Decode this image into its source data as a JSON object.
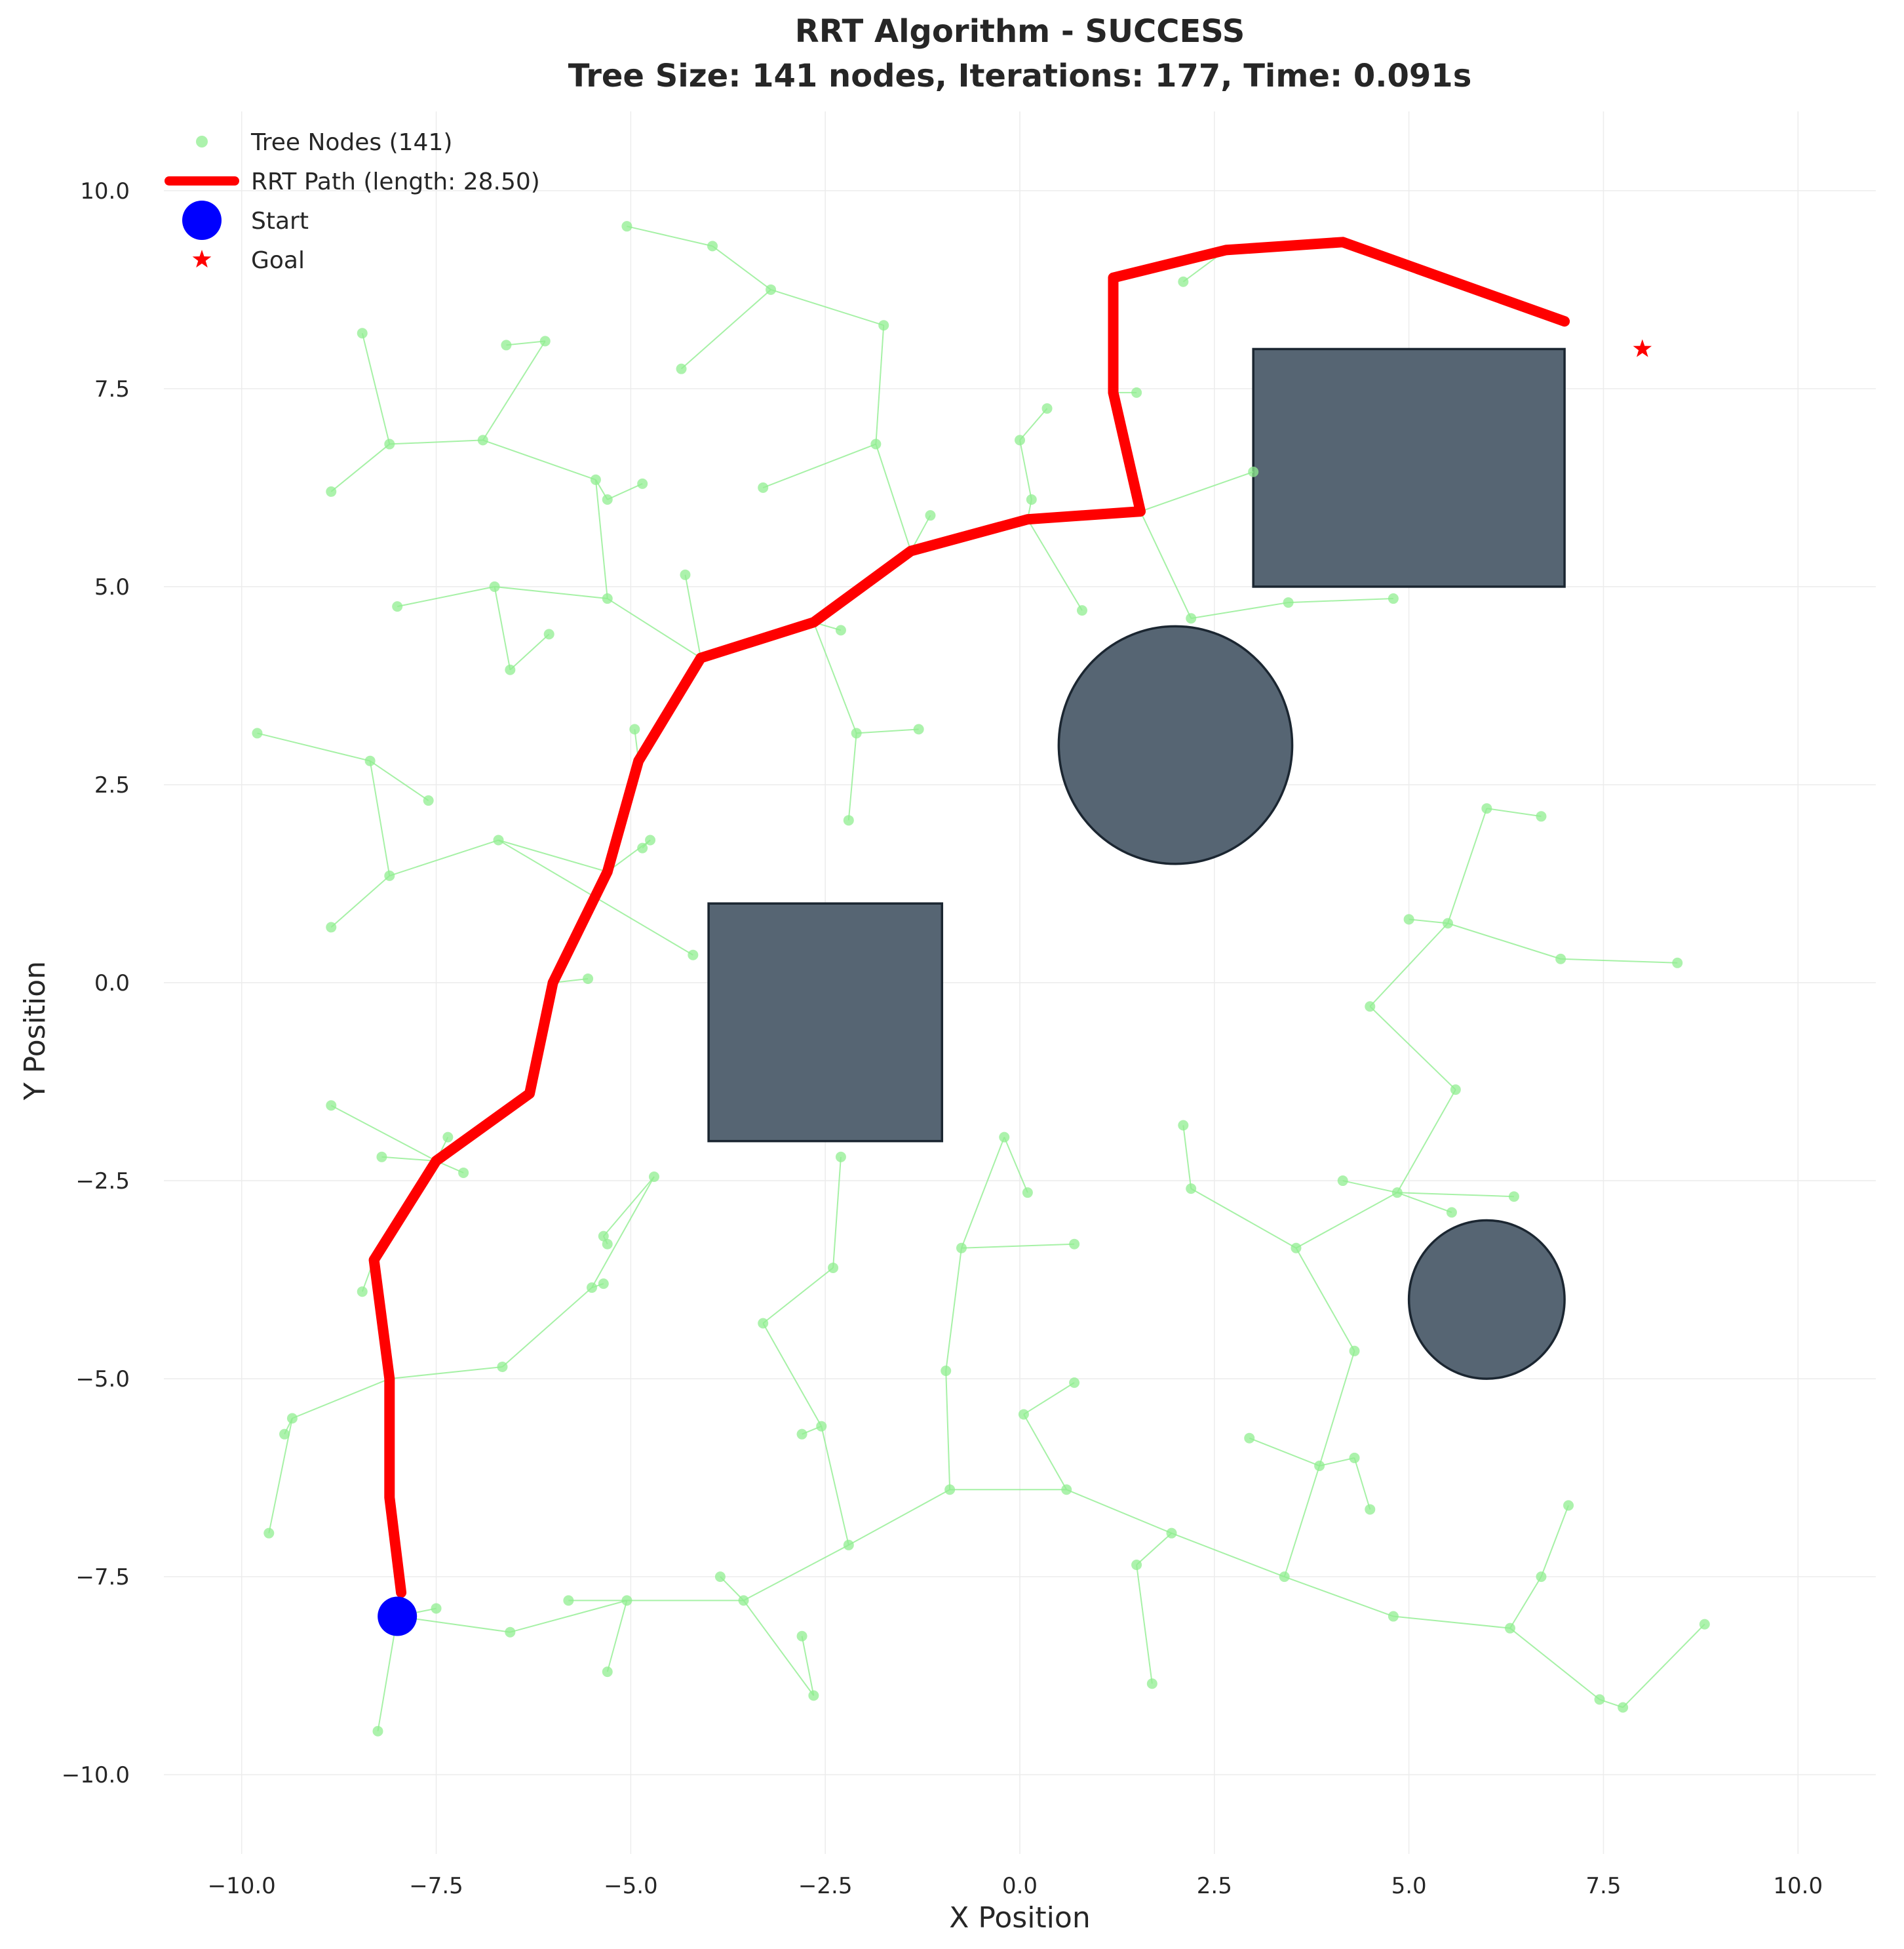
{
  "chart_data": {
    "type": "scatter",
    "title": "RRT Algorithm - SUCCESS",
    "subtitle": "Tree Size: 141 nodes, Iterations: 177, Time: 0.091s",
    "xlabel": "X Position",
    "ylabel": "Y Position",
    "xlim": [
      -11,
      11
    ],
    "ylim": [
      -11,
      11
    ],
    "xticks": [
      -10,
      -7.5,
      -5,
      -2.5,
      0,
      2.5,
      5,
      7.5,
      10
    ],
    "xtick_labels": [
      "−10.0",
      "−7.5",
      "−5.0",
      "−2.5",
      "0.0",
      "2.5",
      "5.0",
      "7.5",
      "10.0"
    ],
    "yticks": [
      10,
      7.5,
      5,
      2.5,
      0,
      -2.5,
      -5,
      -7.5,
      -10
    ],
    "ytick_labels": [
      "10.0",
      "7.5",
      "5.0",
      "2.5",
      "0.0",
      "−2.5",
      "−5.0",
      "−7.5",
      "−10.0"
    ],
    "grid": true,
    "legend_position": "top-left",
    "legend": [
      {
        "label": "Tree Nodes (141)",
        "kind": "node",
        "color": "#90ee90"
      },
      {
        "label": "RRT Path (length: 28.50)",
        "kind": "line",
        "color": "#ff0000"
      },
      {
        "label": "Start",
        "kind": "circle",
        "color": "#0000ff"
      },
      {
        "label": "Goal",
        "kind": "star",
        "color": "#ff0000"
      }
    ],
    "colors": {
      "tree": "#90ee90",
      "path": "#ff0000",
      "start": "#0000ff",
      "goal": "#ff0000",
      "obstacle_fill": "#566573",
      "obstacle_edge": "#1b2631"
    },
    "start": [
      -8,
      -8
    ],
    "goal": [
      8,
      8
    ],
    "obstacles": [
      {
        "shape": "rect",
        "x0": -4,
        "y0": -2,
        "x1": -1,
        "y1": 1
      },
      {
        "shape": "rect",
        "x0": 3,
        "y0": 5,
        "x1": 7,
        "y1": 8
      },
      {
        "shape": "circle",
        "cx": 2,
        "cy": 3,
        "r": 1.5
      },
      {
        "shape": "circle",
        "cx": 6,
        "cy": -4,
        "r": 1
      }
    ],
    "path": [
      [
        -7.95,
        -7.7
      ],
      [
        -8.1,
        -6.5
      ],
      [
        -8.1,
        -5.0
      ],
      [
        -8.3,
        -3.5
      ],
      [
        -7.5,
        -2.25
      ],
      [
        -6.3,
        -1.4
      ],
      [
        -6.0,
        0.0
      ],
      [
        -5.3,
        1.4
      ],
      [
        -4.9,
        2.8
      ],
      [
        -4.1,
        4.1
      ],
      [
        -2.65,
        4.55
      ],
      [
        -1.4,
        5.45
      ],
      [
        0.1,
        5.85
      ],
      [
        1.55,
        5.95
      ],
      [
        1.2,
        7.45
      ],
      [
        1.2,
        8.9
      ],
      [
        2.65,
        9.25
      ],
      [
        4.15,
        9.35
      ],
      [
        7.0,
        8.35
      ]
    ],
    "tree_edges": [
      [
        [
          -8.0,
          -8.0
        ],
        [
          -7.5,
          -7.9
        ]
      ],
      [
        [
          -8.0,
          -8.0
        ],
        [
          -8.25,
          -9.45
        ]
      ],
      [
        [
          -8.0,
          -8.0
        ],
        [
          -6.55,
          -8.2
        ]
      ],
      [
        [
          -6.55,
          -8.2
        ],
        [
          -5.05,
          -7.8
        ]
      ],
      [
        [
          -5.05,
          -7.8
        ],
        [
          -5.3,
          -8.7
        ]
      ],
      [
        [
          -5.05,
          -7.8
        ],
        [
          -5.8,
          -7.8
        ]
      ],
      [
        [
          -5.05,
          -7.8
        ],
        [
          -3.55,
          -7.8
        ]
      ],
      [
        [
          -3.55,
          -7.8
        ],
        [
          -3.85,
          -7.5
        ]
      ],
      [
        [
          -3.55,
          -7.8
        ],
        [
          -2.65,
          -9.0
        ]
      ],
      [
        [
          -2.65,
          -9.0
        ],
        [
          -2.8,
          -8.25
        ]
      ],
      [
        [
          -3.55,
          -7.8
        ],
        [
          -2.2,
          -7.1
        ]
      ],
      [
        [
          -2.2,
          -7.1
        ],
        [
          -2.55,
          -5.6
        ]
      ],
      [
        [
          -2.55,
          -5.6
        ],
        [
          -2.8,
          -5.7
        ]
      ],
      [
        [
          -2.55,
          -5.6
        ],
        [
          -3.3,
          -4.3
        ]
      ],
      [
        [
          -3.3,
          -4.3
        ],
        [
          -2.4,
          -3.6
        ]
      ],
      [
        [
          -2.4,
          -3.6
        ],
        [
          -2.3,
          -2.2
        ]
      ],
      [
        [
          -2.2,
          -7.1
        ],
        [
          -0.9,
          -6.4
        ]
      ],
      [
        [
          -0.9,
          -6.4
        ],
        [
          -0.95,
          -4.9
        ]
      ],
      [
        [
          -0.95,
          -4.9
        ],
        [
          -0.75,
          -3.35
        ]
      ],
      [
        [
          -0.75,
          -3.35
        ],
        [
          0.7,
          -3.3
        ]
      ],
      [
        [
          -0.75,
          -3.35
        ],
        [
          -0.2,
          -1.95
        ]
      ],
      [
        [
          -0.2,
          -1.95
        ],
        [
          0.1,
          -2.65
        ]
      ],
      [
        [
          -0.9,
          -6.4
        ],
        [
          0.6,
          -6.4
        ]
      ],
      [
        [
          0.6,
          -6.4
        ],
        [
          0.05,
          -5.45
        ]
      ],
      [
        [
          0.05,
          -5.45
        ],
        [
          0.7,
          -5.05
        ]
      ],
      [
        [
          0.6,
          -6.4
        ],
        [
          1.95,
          -6.95
        ]
      ],
      [
        [
          1.95,
          -6.95
        ],
        [
          1.5,
          -7.35
        ]
      ],
      [
        [
          1.5,
          -7.35
        ],
        [
          1.7,
          -8.85
        ]
      ],
      [
        [
          1.95,
          -6.95
        ],
        [
          3.4,
          -7.5
        ]
      ],
      [
        [
          3.4,
          -7.5
        ],
        [
          3.85,
          -6.1
        ]
      ],
      [
        [
          3.85,
          -6.1
        ],
        [
          2.95,
          -5.75
        ]
      ],
      [
        [
          3.85,
          -6.1
        ],
        [
          4.3,
          -6.0
        ]
      ],
      [
        [
          4.3,
          -6.0
        ],
        [
          4.5,
          -6.65
        ]
      ],
      [
        [
          3.85,
          -6.1
        ],
        [
          4.3,
          -4.65
        ]
      ],
      [
        [
          4.3,
          -4.65
        ],
        [
          3.55,
          -3.35
        ]
      ],
      [
        [
          3.55,
          -3.35
        ],
        [
          2.2,
          -2.6
        ]
      ],
      [
        [
          2.2,
          -2.6
        ],
        [
          2.1,
          -1.8
        ]
      ],
      [
        [
          3.55,
          -3.35
        ],
        [
          4.85,
          -2.65
        ]
      ],
      [
        [
          4.85,
          -2.65
        ],
        [
          4.15,
          -2.5
        ]
      ],
      [
        [
          4.85,
          -2.65
        ],
        [
          5.55,
          -2.9
        ]
      ],
      [
        [
          4.85,
          -2.65
        ],
        [
          6.35,
          -2.7
        ]
      ],
      [
        [
          4.85,
          -2.65
        ],
        [
          5.6,
          -1.35
        ]
      ],
      [
        [
          5.6,
          -1.35
        ],
        [
          4.5,
          -0.3
        ]
      ],
      [
        [
          4.5,
          -0.3
        ],
        [
          5.5,
          0.75
        ]
      ],
      [
        [
          5.5,
          0.75
        ],
        [
          5.0,
          0.8
        ]
      ],
      [
        [
          5.5,
          0.75
        ],
        [
          6.0,
          2.2
        ]
      ],
      [
        [
          6.0,
          2.2
        ],
        [
          6.7,
          2.1
        ]
      ],
      [
        [
          5.5,
          0.75
        ],
        [
          6.95,
          0.3
        ]
      ],
      [
        [
          6.95,
          0.3
        ],
        [
          8.45,
          0.25
        ]
      ],
      [
        [
          3.4,
          -7.5
        ],
        [
          4.8,
          -8.0
        ]
      ],
      [
        [
          4.8,
          -8.0
        ],
        [
          6.3,
          -8.15
        ]
      ],
      [
        [
          6.3,
          -8.15
        ],
        [
          6.7,
          -7.5
        ]
      ],
      [
        [
          6.7,
          -7.5
        ],
        [
          7.05,
          -6.6
        ]
      ],
      [
        [
          6.3,
          -8.15
        ],
        [
          7.45,
          -9.05
        ]
      ],
      [
        [
          7.45,
          -9.05
        ],
        [
          7.75,
          -9.15
        ]
      ],
      [
        [
          7.75,
          -9.15
        ],
        [
          8.8,
          -8.1
        ]
      ],
      [
        [
          -8.1,
          -5.0
        ],
        [
          -6.65,
          -4.85
        ]
      ],
      [
        [
          -6.65,
          -4.85
        ],
        [
          -5.5,
          -3.85
        ]
      ],
      [
        [
          -5.5,
          -3.85
        ],
        [
          -5.35,
          -3.8
        ]
      ],
      [
        [
          -5.5,
          -3.85
        ],
        [
          -4.7,
          -2.45
        ]
      ],
      [
        [
          -4.7,
          -2.45
        ],
        [
          -5.35,
          -3.2
        ]
      ],
      [
        [
          -5.35,
          -3.2
        ],
        [
          -5.3,
          -3.3
        ]
      ],
      [
        [
          -8.1,
          -5.0
        ],
        [
          -9.35,
          -5.5
        ]
      ],
      [
        [
          -9.35,
          -5.5
        ],
        [
          -9.45,
          -5.7
        ]
      ],
      [
        [
          -9.35,
          -5.5
        ],
        [
          -9.65,
          -6.95
        ]
      ],
      [
        [
          -8.3,
          -3.5
        ],
        [
          -8.45,
          -3.9
        ]
      ],
      [
        [
          -7.5,
          -2.25
        ],
        [
          -8.85,
          -1.55
        ]
      ],
      [
        [
          -7.5,
          -2.25
        ],
        [
          -8.2,
          -2.2
        ]
      ],
      [
        [
          -7.5,
          -2.25
        ],
        [
          -7.15,
          -2.4
        ]
      ],
      [
        [
          -7.5,
          -2.25
        ],
        [
          -7.35,
          -1.95
        ]
      ],
      [
        [
          -6.0,
          0.0
        ],
        [
          -5.55,
          0.05
        ]
      ],
      [
        [
          -5.3,
          1.4
        ],
        [
          -6.7,
          1.8
        ]
      ],
      [
        [
          -6.7,
          1.8
        ],
        [
          -8.1,
          1.35
        ]
      ],
      [
        [
          -8.1,
          1.35
        ],
        [
          -8.85,
          0.7
        ]
      ],
      [
        [
          -8.1,
          1.35
        ],
        [
          -8.35,
          2.8
        ]
      ],
      [
        [
          -8.35,
          2.8
        ],
        [
          -9.8,
          3.15
        ]
      ],
      [
        [
          -8.35,
          2.8
        ],
        [
          -7.6,
          2.3
        ]
      ],
      [
        [
          -6.7,
          1.8
        ],
        [
          -4.2,
          0.35
        ]
      ],
      [
        [
          -5.3,
          1.4
        ],
        [
          -4.75,
          1.8
        ]
      ],
      [
        [
          -4.75,
          1.8
        ],
        [
          -4.85,
          1.7
        ]
      ],
      [
        [
          -4.9,
          2.8
        ],
        [
          -4.95,
          3.2
        ]
      ],
      [
        [
          -4.1,
          4.1
        ],
        [
          -4.3,
          5.15
        ]
      ],
      [
        [
          -4.1,
          4.1
        ],
        [
          -5.3,
          4.85
        ]
      ],
      [
        [
          -5.3,
          4.85
        ],
        [
          -6.75,
          5.0
        ]
      ],
      [
        [
          -6.75,
          5.0
        ],
        [
          -8.0,
          4.75
        ]
      ],
      [
        [
          -6.75,
          5.0
        ],
        [
          -6.55,
          3.95
        ]
      ],
      [
        [
          -6.55,
          3.95
        ],
        [
          -6.05,
          4.4
        ]
      ],
      [
        [
          -5.3,
          4.85
        ],
        [
          -5.45,
          6.35
        ]
      ],
      [
        [
          -5.45,
          6.35
        ],
        [
          -5.3,
          6.1
        ]
      ],
      [
        [
          -5.3,
          6.1
        ],
        [
          -4.85,
          6.3
        ]
      ],
      [
        [
          -5.45,
          6.35
        ],
        [
          -6.9,
          6.85
        ]
      ],
      [
        [
          -6.9,
          6.85
        ],
        [
          -8.1,
          6.8
        ]
      ],
      [
        [
          -8.1,
          6.8
        ],
        [
          -8.85,
          6.2
        ]
      ],
      [
        [
          -8.1,
          6.8
        ],
        [
          -8.45,
          8.2
        ]
      ],
      [
        [
          -6.9,
          6.85
        ],
        [
          -6.1,
          8.1
        ]
      ],
      [
        [
          -6.1,
          8.1
        ],
        [
          -6.6,
          8.05
        ]
      ],
      [
        [
          -2.65,
          4.55
        ],
        [
          -2.3,
          4.45
        ]
      ],
      [
        [
          -2.65,
          4.55
        ],
        [
          -2.1,
          3.15
        ]
      ],
      [
        [
          -2.1,
          3.15
        ],
        [
          -2.2,
          2.05
        ]
      ],
      [
        [
          -2.1,
          3.15
        ],
        [
          -1.3,
          3.2
        ]
      ],
      [
        [
          -1.4,
          5.45
        ],
        [
          -1.85,
          6.8
        ]
      ],
      [
        [
          -1.85,
          6.8
        ],
        [
          -3.3,
          6.25
        ]
      ],
      [
        [
          -1.85,
          6.8
        ],
        [
          -1.75,
          8.3
        ]
      ],
      [
        [
          -1.75,
          8.3
        ],
        [
          -3.2,
          8.75
        ]
      ],
      [
        [
          -3.2,
          8.75
        ],
        [
          -4.35,
          7.75
        ]
      ],
      [
        [
          -3.2,
          8.75
        ],
        [
          -3.95,
          9.3
        ]
      ],
      [
        [
          -3.95,
          9.3
        ],
        [
          -5.05,
          9.55
        ]
      ],
      [
        [
          -1.4,
          5.45
        ],
        [
          -1.15,
          5.9
        ]
      ],
      [
        [
          0.1,
          5.85
        ],
        [
          0.15,
          6.1
        ]
      ],
      [
        [
          0.15,
          6.1
        ],
        [
          0.0,
          6.85
        ]
      ],
      [
        [
          0.0,
          6.85
        ],
        [
          0.35,
          7.25
        ]
      ],
      [
        [
          0.1,
          5.85
        ],
        [
          0.8,
          4.7
        ]
      ],
      [
        [
          1.2,
          7.45
        ],
        [
          1.5,
          7.45
        ]
      ],
      [
        [
          1.55,
          5.95
        ],
        [
          2.2,
          4.6
        ]
      ],
      [
        [
          2.2,
          4.6
        ],
        [
          3.45,
          4.8
        ]
      ],
      [
        [
          3.45,
          4.8
        ],
        [
          4.8,
          4.85
        ]
      ],
      [
        [
          1.55,
          5.95
        ],
        [
          3.0,
          6.45
        ]
      ],
      [
        [
          2.65,
          9.25
        ],
        [
          2.1,
          8.85
        ]
      ]
    ]
  }
}
